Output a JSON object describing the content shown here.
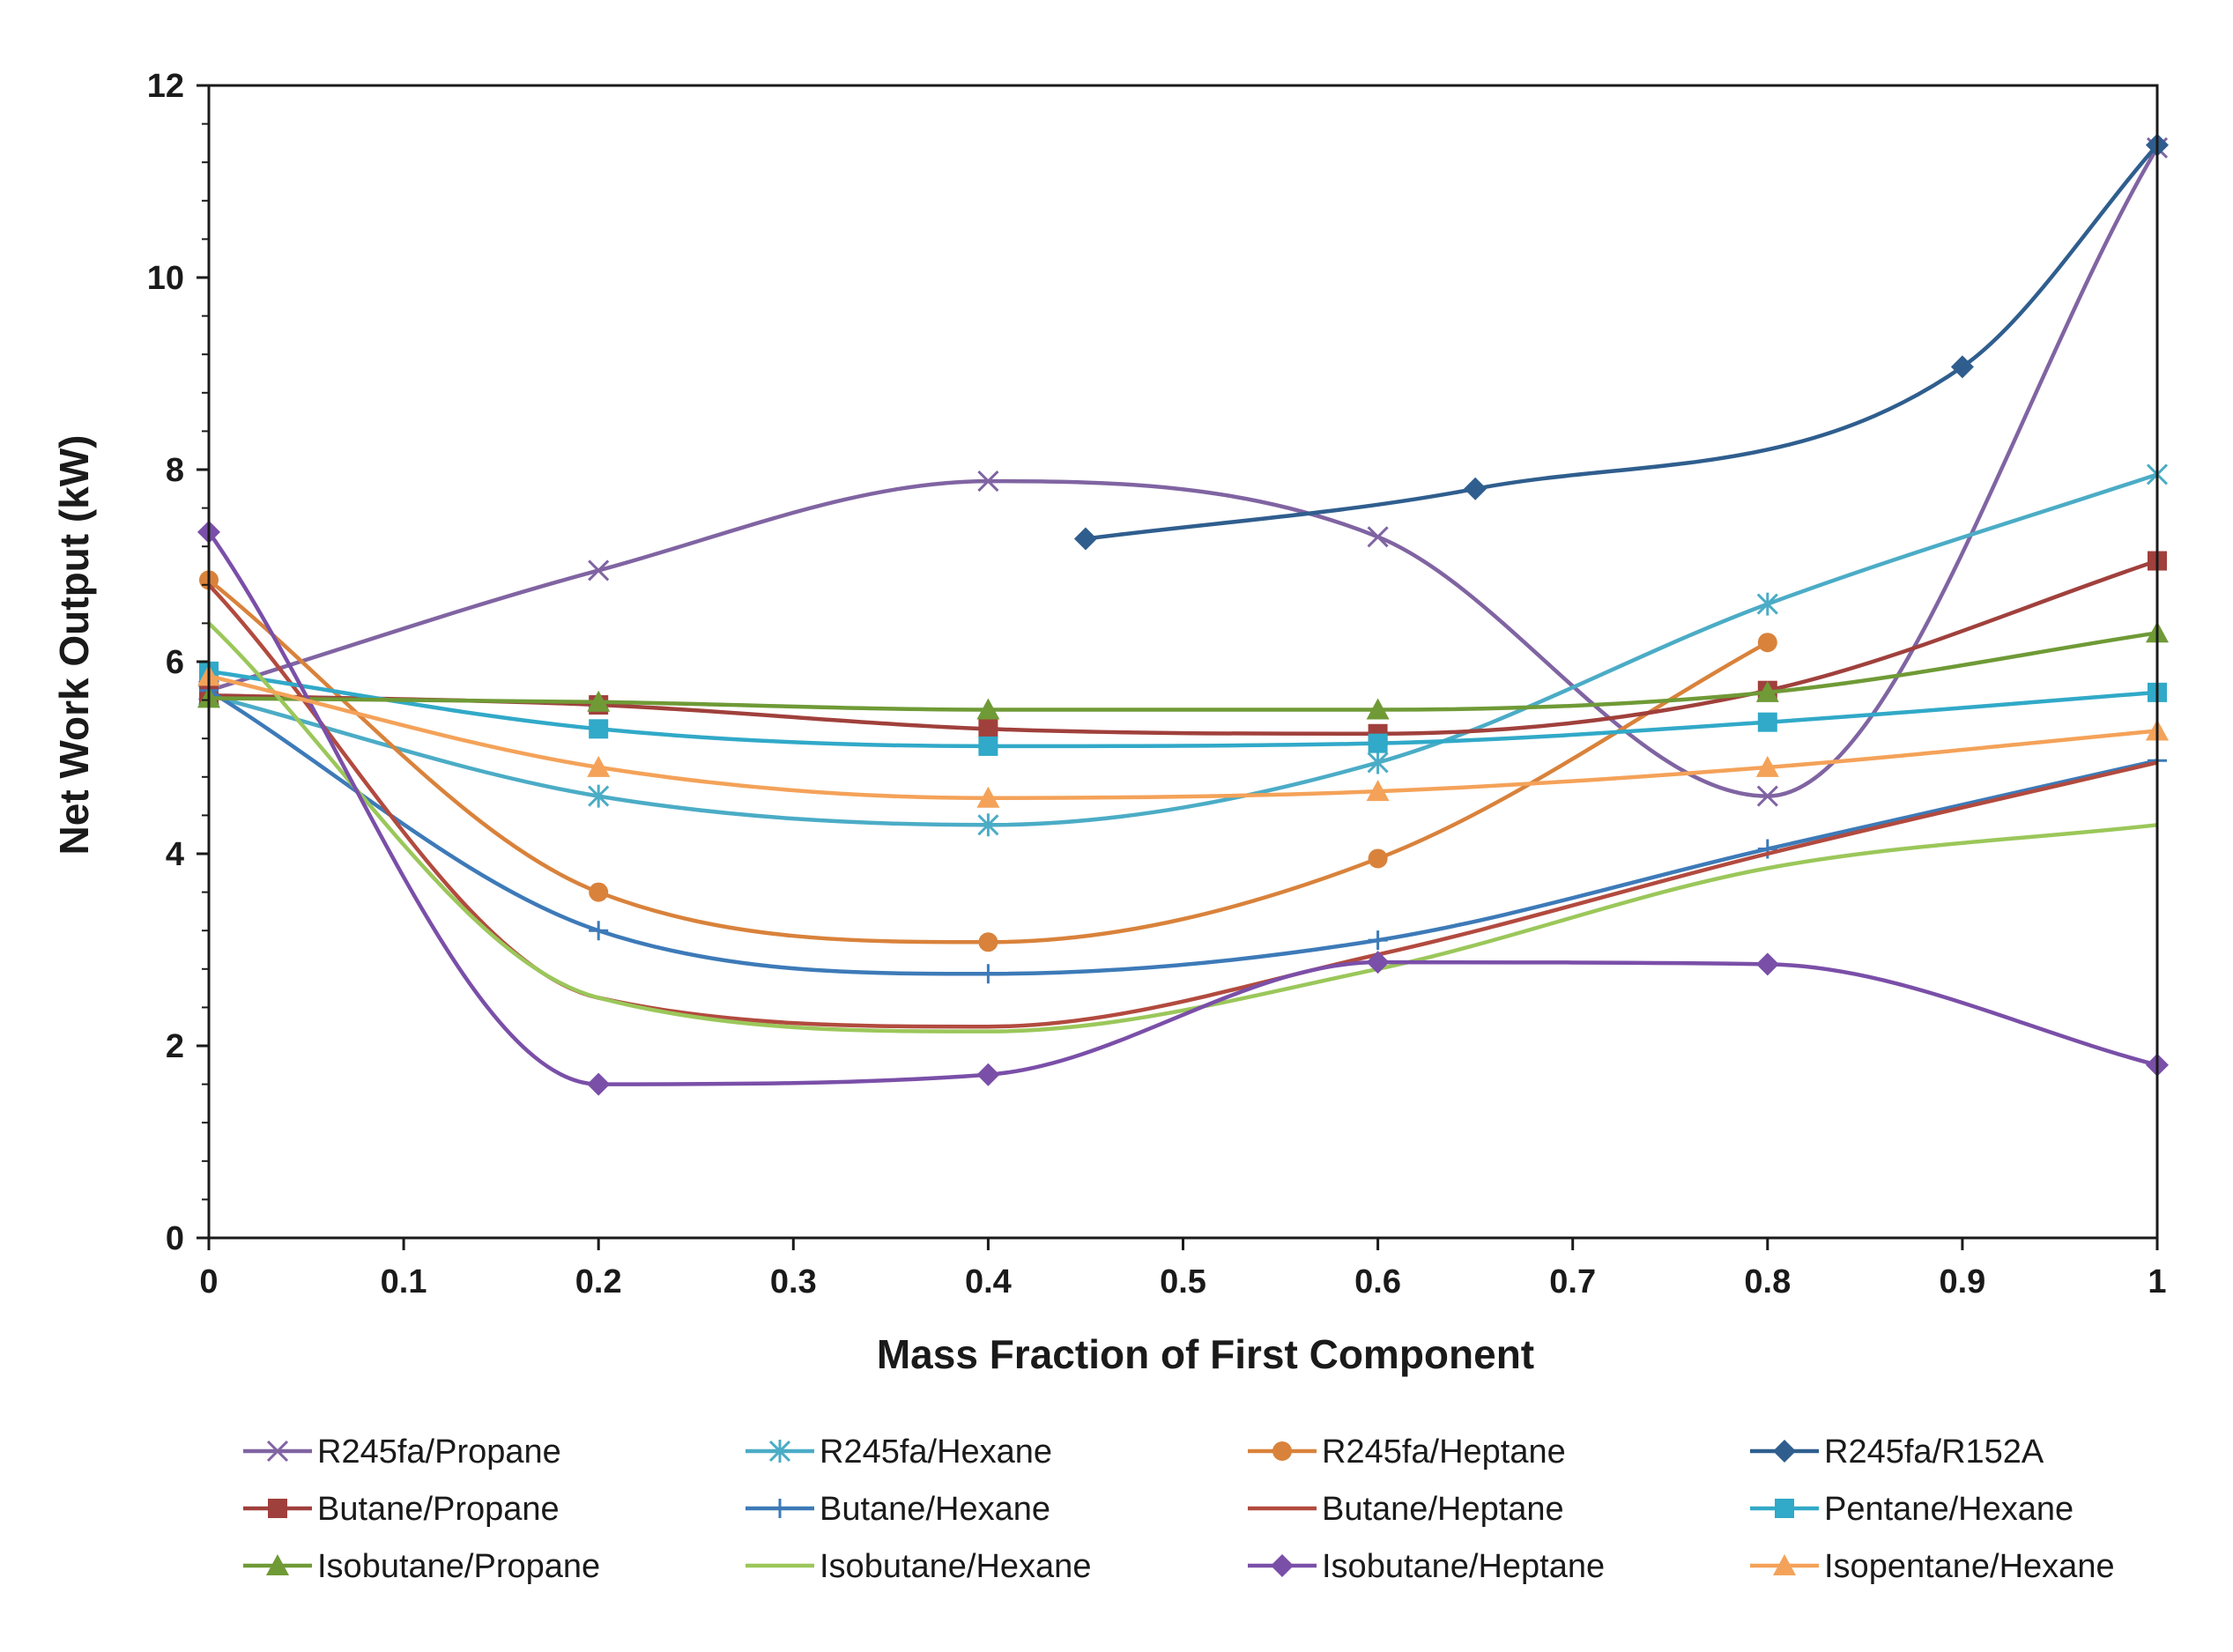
{
  "chart_data": {
    "type": "line",
    "title": "",
    "xlabel": "Mass Fraction of First Component",
    "ylabel": "Net Work Output (kW)",
    "xlim": [
      0,
      1
    ],
    "ylim": [
      0,
      12
    ],
    "x_ticks": [
      "0",
      "0.1",
      "0.2",
      "0.3",
      "0.4",
      "0.5",
      "0.6",
      "0.7",
      "0.8",
      "0.9",
      "1"
    ],
    "y_ticks": [
      "0",
      "2",
      "4",
      "6",
      "8",
      "10",
      "12"
    ],
    "grid": false,
    "legend_position": "bottom",
    "series": [
      {
        "name": "R245fa/Propane",
        "color": "#8064a2",
        "marker": "x",
        "x": [
          0,
          0.2,
          0.4,
          0.6,
          0.8,
          1
        ],
        "y": [
          5.7,
          6.95,
          7.88,
          7.3,
          4.6,
          11.35
        ]
      },
      {
        "name": "R245fa/Hexane",
        "color": "#4bacc6",
        "marker": "asterisk",
        "x": [
          0,
          0.2,
          0.4,
          0.6,
          0.8,
          1
        ],
        "y": [
          5.65,
          4.6,
          4.3,
          4.95,
          6.6,
          7.95
        ]
      },
      {
        "name": "R245fa/Heptane",
        "color": "#d9823b",
        "marker": "circle",
        "x": [
          0,
          0.2,
          0.4,
          0.6,
          0.8
        ],
        "y": [
          6.85,
          3.6,
          3.08,
          3.95,
          6.2
        ]
      },
      {
        "name": "R245fa/R152A",
        "color": "#2f5e8e",
        "marker": "diamond",
        "x": [
          0.45,
          0.65,
          0.9,
          1
        ],
        "y": [
          7.28,
          7.8,
          9.07,
          11.38
        ]
      },
      {
        "name": "Butane/Propane",
        "color": "#a0403c",
        "marker": "square",
        "x": [
          0,
          0.2,
          0.4,
          0.6,
          0.8,
          1
        ],
        "y": [
          5.65,
          5.55,
          5.3,
          5.25,
          5.7,
          7.05
        ]
      },
      {
        "name": "Butane/Hexane",
        "color": "#3d7ab8",
        "marker": "plus",
        "x": [
          0,
          0.2,
          0.4,
          0.6,
          0.8,
          1
        ],
        "y": [
          5.7,
          3.2,
          2.75,
          3.1,
          4.05,
          4.97
        ]
      },
      {
        "name": "Butane/Heptane",
        "color": "#b24a3f",
        "marker": "none",
        "x": [
          0,
          0.2,
          0.4,
          0.6,
          0.8,
          1
        ],
        "y": [
          6.8,
          2.5,
          2.2,
          2.95,
          4.0,
          4.95
        ]
      },
      {
        "name": "Pentane/Hexane",
        "color": "#31a9c8",
        "marker": "square",
        "x": [
          0,
          0.2,
          0.4,
          0.6,
          0.8,
          1
        ],
        "y": [
          5.9,
          5.3,
          5.12,
          5.15,
          5.37,
          5.68
        ]
      },
      {
        "name": "Isobutane/Propane",
        "color": "#6f9a36",
        "marker": "triangle",
        "x": [
          0,
          0.2,
          0.4,
          0.6,
          0.8,
          1
        ],
        "y": [
          5.62,
          5.58,
          5.5,
          5.5,
          5.68,
          6.3
        ]
      },
      {
        "name": "Isobutane/Hexane",
        "color": "#9bc75a",
        "marker": "none",
        "x": [
          0,
          0.2,
          0.4,
          0.6,
          0.8,
          1
        ],
        "y": [
          6.4,
          2.5,
          2.15,
          2.8,
          3.85,
          4.3
        ]
      },
      {
        "name": "Isobutane/Heptane",
        "color": "#7a4fa8",
        "marker": "diamond",
        "x": [
          0,
          0.2,
          0.4,
          0.6,
          0.8,
          1
        ],
        "y": [
          7.35,
          1.6,
          1.7,
          2.87,
          2.85,
          1.8
        ]
      },
      {
        "name": "Isopentane/Hexane",
        "color": "#f4a259",
        "marker": "triangle",
        "x": [
          0,
          0.2,
          0.4,
          0.6,
          0.8,
          1
        ],
        "y": [
          5.85,
          4.9,
          4.58,
          4.65,
          4.9,
          5.28
        ]
      }
    ]
  }
}
